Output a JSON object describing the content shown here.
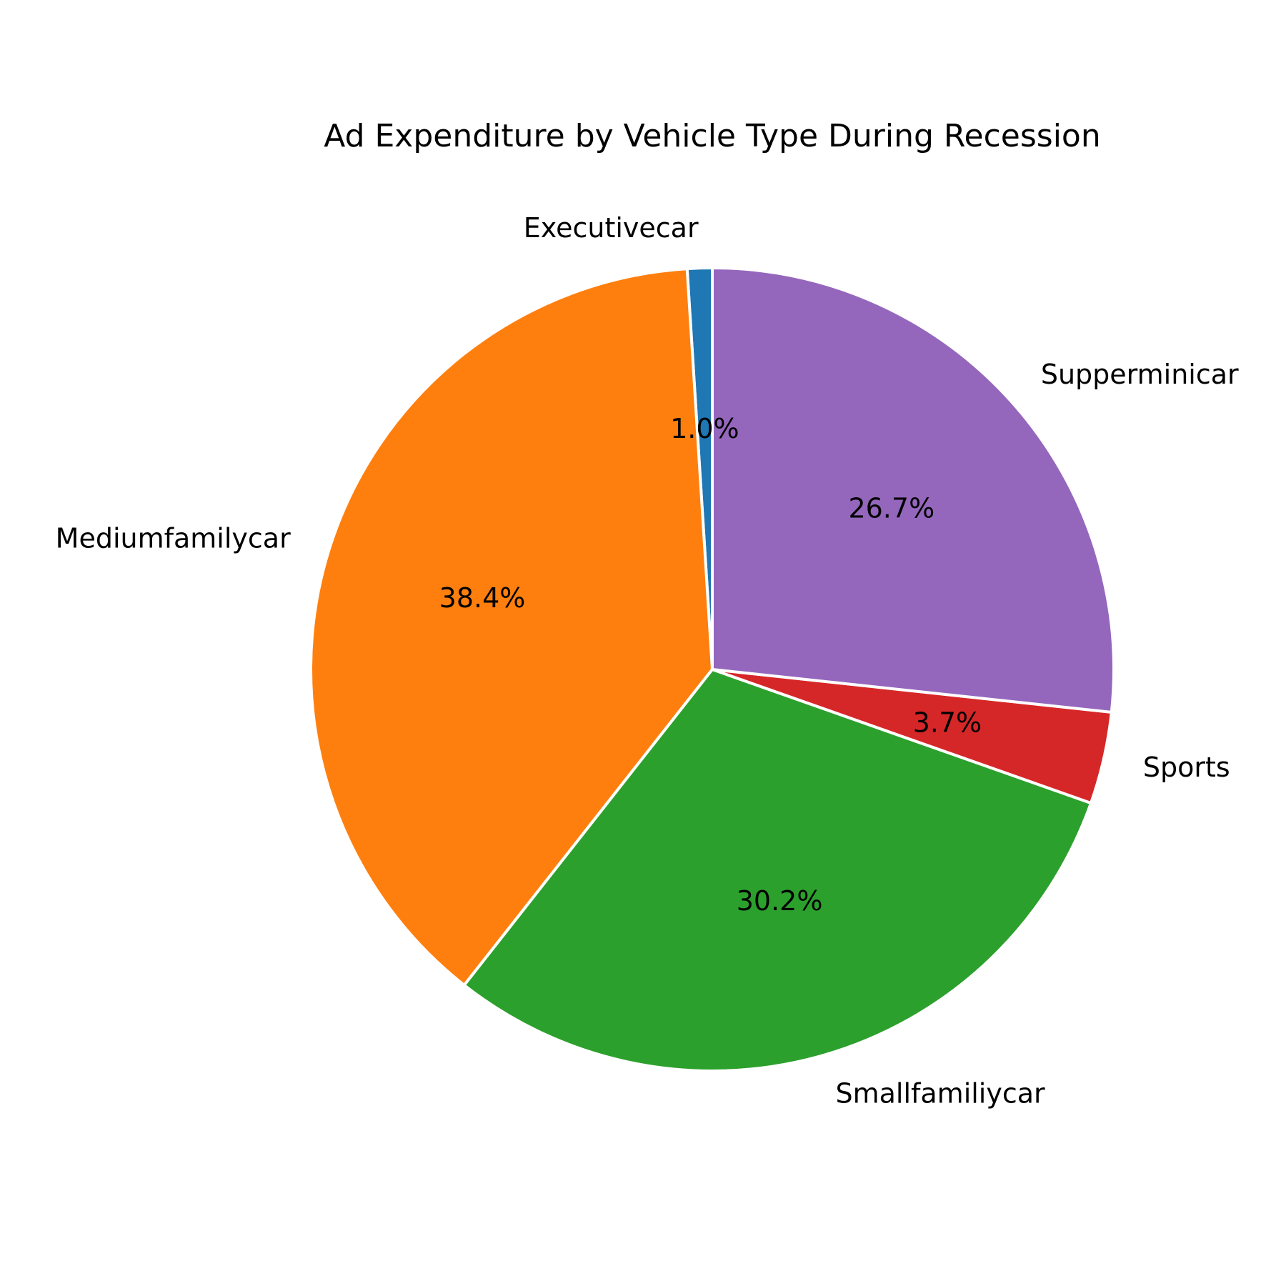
{
  "chart_data": {
    "type": "pie",
    "title": "Ad Expenditure by Vehicle Type During Recession",
    "start_angle": 90,
    "direction": "counterclockwise",
    "slices": [
      {
        "label": "Executivecar",
        "value": 1.0,
        "pct_label": "1.0%",
        "color": "#1f77b4"
      },
      {
        "label": "Mediumfamilycar",
        "value": 38.4,
        "pct_label": "38.4%",
        "color": "#ff7f0e"
      },
      {
        "label": "Smallfamiliycar",
        "value": 30.2,
        "pct_label": "30.2%",
        "color": "#2ca02c"
      },
      {
        "label": "Sports",
        "value": 3.7,
        "pct_label": "3.7%",
        "color": "#d62728"
      },
      {
        "label": "Supperminicar",
        "value": 26.7,
        "pct_label": "26.7%",
        "color": "#9467bd"
      }
    ],
    "wedge_edge_color": "#ffffff"
  }
}
